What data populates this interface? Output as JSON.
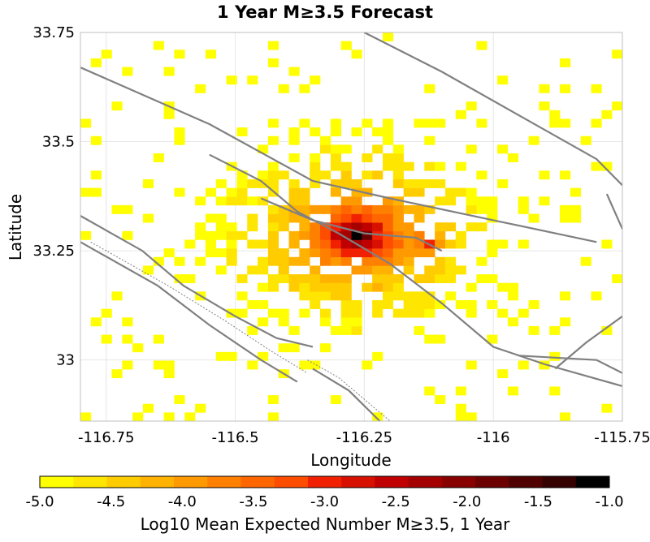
{
  "chart_data": {
    "type": "heatmap",
    "title": "1 Year M≥3.5 Forecast",
    "xlabel": "Longitude",
    "ylabel": "Latitude",
    "xlim": [
      -116.8,
      -115.75
    ],
    "ylim": [
      32.86,
      33.75
    ],
    "x_ticks": [
      "-116.75",
      "-116.5",
      "-116.25",
      "-116",
      "-115.75"
    ],
    "y_ticks": [
      "33.75",
      "33.5",
      "33.25",
      "33"
    ],
    "grid": true,
    "colorbar": {
      "label": "Log10 Mean Expected Number M≥3.5, 1 Year",
      "ticks": [
        "-5.0",
        "-4.5",
        "-4.0",
        "-3.5",
        "-3.0",
        "-2.5",
        "-2.0",
        "-1.5",
        "-1.0"
      ],
      "range": [
        -5.0,
        -1.0
      ],
      "colors": [
        "#ffff00",
        "#ffe600",
        "#ffcc00",
        "#ffb300",
        "#ff9900",
        "#ff8000",
        "#ff6600",
        "#ff4d00",
        "#f02000",
        "#d81000",
        "#c00000",
        "#a40000",
        "#880000",
        "#6c0000",
        "#500000",
        "#340000",
        "#000000"
      ]
    },
    "cell_size_deg": 0.02,
    "peak": {
      "lon": -116.27,
      "lat": 33.29,
      "value": -1.0
    },
    "secondary_peak": {
      "lon": -116.13,
      "lat": 33.27,
      "value": -2.8
    },
    "faults": [
      [
        [
          -116.8,
          33.67
        ],
        [
          -116.55,
          33.54
        ],
        [
          -116.35,
          33.41
        ],
        [
          -116.2,
          33.37
        ],
        [
          -116.0,
          33.32
        ],
        [
          -115.8,
          33.27
        ]
      ],
      [
        [
          -116.55,
          33.47
        ],
        [
          -116.45,
          33.41
        ],
        [
          -116.38,
          33.34
        ],
        [
          -116.3,
          33.29
        ],
        [
          -116.2,
          33.22
        ],
        [
          -116.1,
          33.13
        ],
        [
          -116.0,
          33.03
        ],
        [
          -115.9,
          32.99
        ],
        [
          -115.75,
          32.94
        ]
      ],
      [
        [
          -116.45,
          33.37
        ],
        [
          -116.35,
          33.32
        ],
        [
          -116.25,
          33.29
        ],
        [
          -116.15,
          33.28
        ],
        [
          -116.1,
          33.25
        ]
      ],
      [
        [
          -116.8,
          33.33
        ],
        [
          -116.68,
          33.25
        ],
        [
          -116.6,
          33.17
        ],
        [
          -116.5,
          33.1
        ],
        [
          -116.42,
          33.05
        ],
        [
          -116.35,
          33.03
        ]
      ],
      [
        [
          -116.8,
          33.27
        ],
        [
          -116.65,
          33.17
        ],
        [
          -116.55,
          33.08
        ],
        [
          -116.45,
          33.0
        ],
        [
          -116.38,
          32.95
        ]
      ],
      [
        [
          -116.35,
          32.98
        ],
        [
          -116.28,
          32.93
        ],
        [
          -116.22,
          32.86
        ]
      ],
      [
        [
          -116.25,
          33.75
        ],
        [
          -116.1,
          33.66
        ],
        [
          -115.95,
          33.56
        ],
        [
          -115.8,
          33.46
        ],
        [
          -115.75,
          33.4
        ]
      ],
      [
        [
          -115.78,
          33.38
        ],
        [
          -115.75,
          33.3
        ]
      ],
      [
        [
          -115.88,
          32.98
        ],
        [
          -115.82,
          33.04
        ],
        [
          -115.75,
          33.1
        ]
      ],
      [
        [
          -115.95,
          33.01
        ],
        [
          -115.8,
          33.0
        ],
        [
          -115.75,
          32.97
        ]
      ]
    ],
    "dotted_faults": [
      [
        [
          -116.78,
          33.27
        ],
        [
          -116.63,
          33.17
        ],
        [
          -116.52,
          33.09
        ],
        [
          -116.43,
          33.02
        ],
        [
          -116.36,
          32.97
        ]
      ],
      [
        [
          -116.36,
          33.0
        ],
        [
          -116.3,
          32.96
        ],
        [
          -116.24,
          32.9
        ],
        [
          -116.2,
          32.86
        ]
      ]
    ]
  }
}
